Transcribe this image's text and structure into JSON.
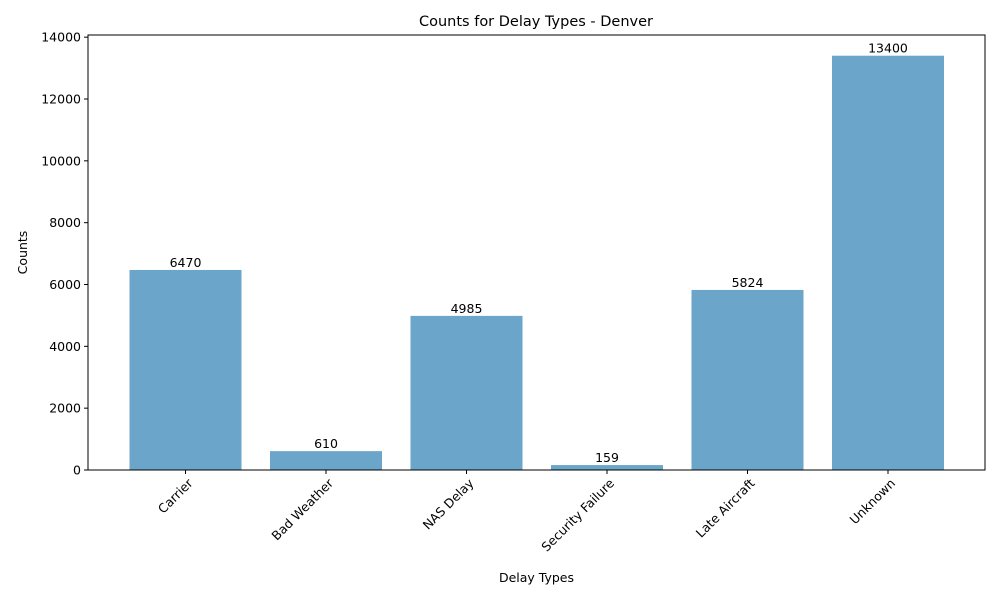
{
  "chart_data": {
    "type": "bar",
    "title": "Counts for Delay Types - Denver",
    "xlabel": "Delay Types",
    "ylabel": "Counts",
    "categories": [
      "Carrier",
      "Bad Weather",
      "NAS Delay",
      "Security Failure",
      "Late Aircraft",
      "Unknown"
    ],
    "values": [
      6470,
      610,
      4985,
      159,
      5824,
      13400
    ],
    "value_labels": [
      "6470",
      "610",
      "4985",
      "159",
      "5824",
      "13400"
    ],
    "ylim": [
      0,
      14070
    ],
    "yticks": [
      0,
      2000,
      4000,
      6000,
      8000,
      10000,
      12000,
      14000
    ],
    "ytick_labels": [
      "0",
      "2000",
      "4000",
      "6000",
      "8000",
      "10000",
      "12000",
      "14000"
    ],
    "bar_color": "#6ba5c9",
    "grid": false,
    "legend": "none"
  }
}
